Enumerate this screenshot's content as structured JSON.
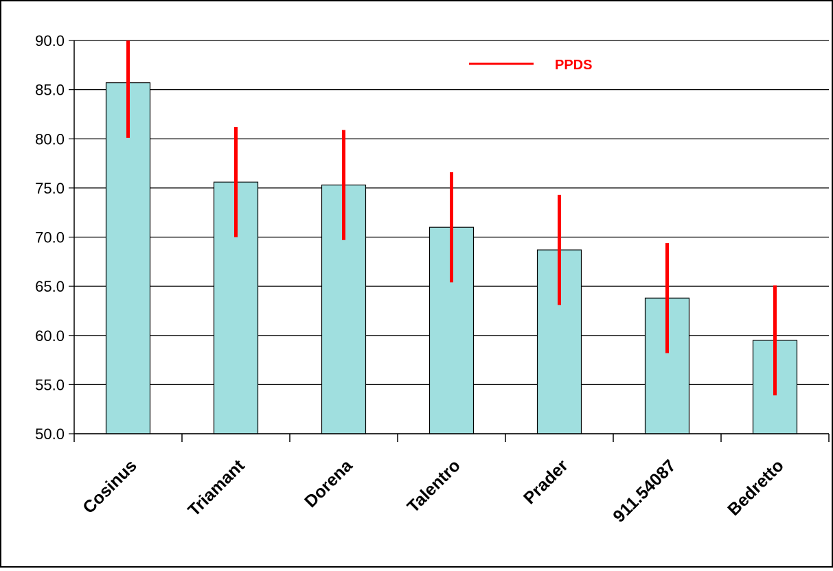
{
  "chart_data": {
    "type": "bar",
    "categories": [
      "Cosinus",
      "Triamant",
      "Dorena",
      "Talentro",
      "Prader",
      "911.54087",
      "Bedretto"
    ],
    "series": [
      {
        "name": "",
        "values": [
          85.7,
          75.6,
          75.3,
          71.0,
          68.7,
          63.8,
          59.5
        ],
        "color": "#a0dfdf"
      }
    ],
    "error_bars": {
      "name": "PPDS",
      "color": "#ff0000",
      "half_width": [
        5.6,
        5.6,
        5.6,
        5.6,
        5.6,
        5.6,
        5.6
      ]
    },
    "yticks": [
      "50.0",
      "55.0",
      "60.0",
      "65.0",
      "70.0",
      "75.0",
      "80.0",
      "85.0",
      "90.0"
    ],
    "ylim": [
      50,
      90
    ],
    "grid": true,
    "legend": {
      "label": "PPDS",
      "position": "top-right"
    },
    "title": "",
    "xlabel": "",
    "ylabel": ""
  }
}
